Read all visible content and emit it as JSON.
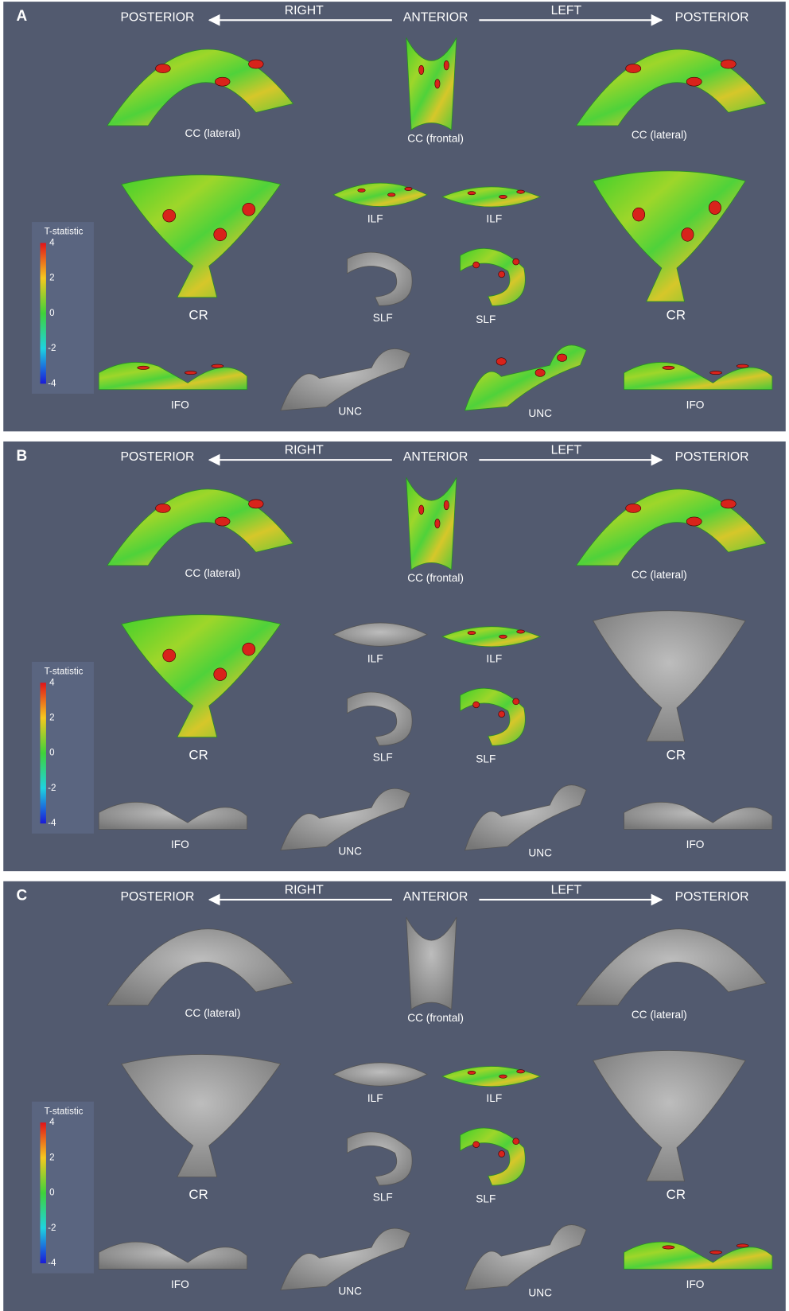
{
  "panels": [
    {
      "label": "A",
      "header": {
        "posterior_right_side": "POSTERIOR",
        "right": "RIGHT",
        "anterior": "ANTERIOR",
        "left": "LEFT",
        "posterior_left_side": "POSTERIOR"
      },
      "colorbar": {
        "title": "T-statistic",
        "ticks": [
          4,
          2,
          0,
          -2,
          -4
        ]
      },
      "structures": [
        "CC (lateral)",
        "CC (frontal)",
        "CC (lateral)",
        "CR",
        "ILF",
        "ILF",
        "CR",
        "SLF",
        "SLF",
        "IFO",
        "UNC",
        "UNC",
        "IFO"
      ]
    },
    {
      "label": "B",
      "header": {
        "posterior_right_side": "POSTERIOR",
        "right": "RIGHT",
        "anterior": "ANTERIOR",
        "left": "LEFT",
        "posterior_left_side": "POSTERIOR"
      },
      "colorbar": {
        "title": "T-statistic",
        "ticks": [
          4,
          2,
          0,
          -2,
          -4
        ]
      },
      "structures": [
        "CC (lateral)",
        "CC (frontal)",
        "CC (lateral)",
        "CR",
        "ILF",
        "ILF",
        "CR",
        "SLF",
        "SLF",
        "IFO",
        "UNC",
        "UNC",
        "IFO"
      ]
    },
    {
      "label": "C",
      "header": {
        "posterior_right_side": "POSTERIOR",
        "right": "RIGHT",
        "anterior": "ANTERIOR",
        "left": "LEFT",
        "posterior_left_side": "POSTERIOR"
      },
      "colorbar": {
        "title": "T-statistic",
        "ticks": [
          4,
          2,
          0,
          -2,
          -4
        ]
      },
      "structures": [
        "CC (lateral)",
        "CC (frontal)",
        "CC (lateral)",
        "CR",
        "ILF",
        "ILF",
        "CR",
        "SLF",
        "SLF",
        "IFO",
        "UNC",
        "UNC",
        "IFO"
      ]
    }
  ]
}
